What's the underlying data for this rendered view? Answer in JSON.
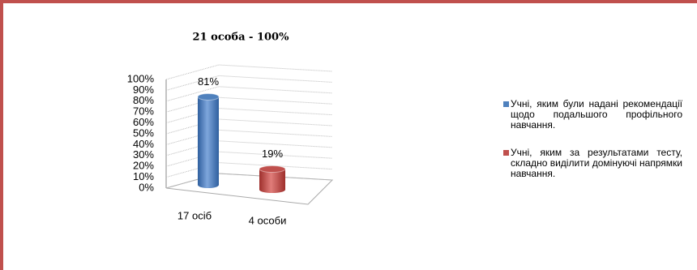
{
  "chart_data": {
    "type": "cylinder",
    "title": "21 особа - 100%",
    "categories": [
      "17 осіб",
      "4 особи"
    ],
    "series": [
      {
        "name": "Учні, яким були надані рекомендації щодо подальшого профільного навчання.",
        "color": "#4f81bd",
        "values": [
          81,
          null
        ],
        "value_labels": [
          "81%",
          null
        ]
      },
      {
        "name": "Учні, яким за результатами тесту, складно виділити домінуючі напрямки навчання.",
        "color": "#c0504d",
        "values": [
          null,
          19
        ],
        "value_labels": [
          null,
          "19%"
        ]
      }
    ],
    "ylim": [
      0,
      100
    ],
    "yticks": [
      {
        "value": 0,
        "label": "0%"
      },
      {
        "value": 10,
        "label": "10%"
      },
      {
        "value": 20,
        "label": "20%"
      },
      {
        "value": 30,
        "label": "30%"
      },
      {
        "value": 40,
        "label": "40%"
      },
      {
        "value": 50,
        "label": "50%"
      },
      {
        "value": 60,
        "label": "60%"
      },
      {
        "value": 70,
        "label": "70%"
      },
      {
        "value": 80,
        "label": "80%"
      },
      {
        "value": 90,
        "label": "90%"
      },
      {
        "value": 100,
        "label": "100%"
      }
    ],
    "grid": true,
    "legend": "right"
  }
}
